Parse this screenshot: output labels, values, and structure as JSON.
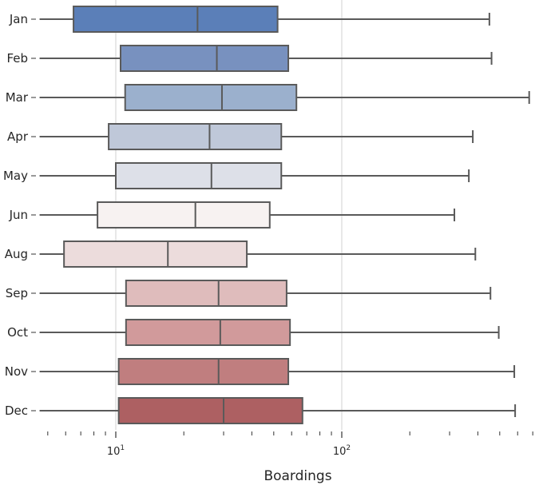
{
  "chart_data": {
    "type": "box",
    "orientation": "horizontal",
    "xlabel": "Boardings",
    "xscale": "log",
    "xlim": [
      4.6,
      680
    ],
    "grid": "vertical major gridlines at decades",
    "legend": "none",
    "x_tick_labels": [
      "10^1",
      "10^2"
    ],
    "categories": [
      "Jan",
      "Feb",
      "Mar",
      "Apr",
      "May",
      "Jun",
      "Aug",
      "Sep",
      "Oct",
      "Nov",
      "Dec"
    ],
    "boxes": [
      {
        "label": "Jan",
        "whislo": 4.6,
        "q1": 6.5,
        "median": 23,
        "q3": 52,
        "whishi": 450,
        "color": "#5b7fb8"
      },
      {
        "label": "Feb",
        "whislo": 4.6,
        "q1": 10.5,
        "median": 28,
        "q3": 58,
        "whishi": 460,
        "color": "#7891bf"
      },
      {
        "label": "Mar",
        "whislo": 4.6,
        "q1": 11,
        "median": 29.5,
        "q3": 63,
        "whishi": 675,
        "color": "#9bb0cd"
      },
      {
        "label": "Apr",
        "whislo": 4.6,
        "q1": 9.3,
        "median": 26,
        "q3": 54,
        "whishi": 380,
        "color": "#bfc8d9"
      },
      {
        "label": "May",
        "whislo": 4.6,
        "q1": 10,
        "median": 26.5,
        "q3": 54,
        "whishi": 365,
        "color": "#dde0e8"
      },
      {
        "label": "Jun",
        "whislo": 4.6,
        "q1": 8.3,
        "median": 22.5,
        "q3": 48,
        "whishi": 315,
        "color": "#f7f2f1"
      },
      {
        "label": "Aug",
        "whislo": 4.6,
        "q1": 5.9,
        "median": 17,
        "q3": 38,
        "whishi": 390,
        "color": "#ecdcdc"
      },
      {
        "label": "Sep",
        "whislo": 4.6,
        "q1": 11.1,
        "median": 28.5,
        "q3": 57,
        "whishi": 455,
        "color": "#dfbcbc"
      },
      {
        "label": "Oct",
        "whislo": 4.6,
        "q1": 11.1,
        "median": 29,
        "q3": 59,
        "whishi": 495,
        "color": "#d19a9b"
      },
      {
        "label": "Nov",
        "whislo": 4.6,
        "q1": 10.3,
        "median": 28.5,
        "q3": 58,
        "whishi": 580,
        "color": "#c07e7f"
      },
      {
        "label": "Dec",
        "whislo": 4.6,
        "q1": 10.3,
        "median": 30,
        "q3": 67,
        "whishi": 585,
        "color": "#ad6062"
      }
    ]
  }
}
